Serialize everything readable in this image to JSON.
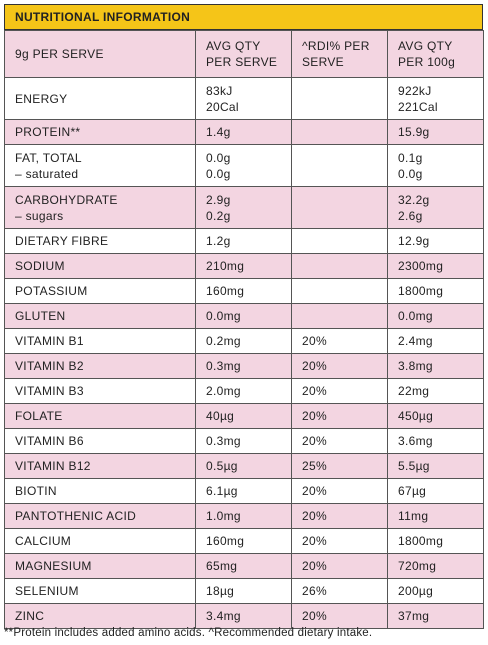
{
  "title": "NUTRITIONAL INFORMATION",
  "header": {
    "col1": "9g PER SERVE",
    "col2": [
      "AVG QTY",
      "PER SERVE"
    ],
    "col3": [
      "^RDI% PER",
      "SERVE"
    ],
    "col4": [
      "AVG QTY",
      "PER 100g"
    ]
  },
  "rows": [
    {
      "name": [
        "ENERGY"
      ],
      "serve": [
        "83kJ",
        "20Cal"
      ],
      "rdi": [
        ""
      ],
      "per100": [
        "922kJ",
        "221Cal"
      ]
    },
    {
      "name": [
        "PROTEIN**"
      ],
      "serve": [
        "1.4g"
      ],
      "rdi": [
        ""
      ],
      "per100": [
        "15.9g"
      ]
    },
    {
      "name": [
        "FAT, TOTAL",
        "– saturated"
      ],
      "serve": [
        "0.0g",
        "0.0g"
      ],
      "rdi": [
        ""
      ],
      "per100": [
        "0.1g",
        "0.0g"
      ]
    },
    {
      "name": [
        "CARBOHYDRATE",
        "– sugars"
      ],
      "serve": [
        "2.9g",
        "0.2g"
      ],
      "rdi": [
        ""
      ],
      "per100": [
        "32.2g",
        "2.6g"
      ]
    },
    {
      "name": [
        "DIETARY FIBRE"
      ],
      "serve": [
        "1.2g"
      ],
      "rdi": [
        ""
      ],
      "per100": [
        "12.9g"
      ]
    },
    {
      "name": [
        "SODIUM"
      ],
      "serve": [
        "210mg"
      ],
      "rdi": [
        ""
      ],
      "per100": [
        "2300mg"
      ]
    },
    {
      "name": [
        "POTASSIUM"
      ],
      "serve": [
        "160mg"
      ],
      "rdi": [
        ""
      ],
      "per100": [
        "1800mg"
      ]
    },
    {
      "name": [
        "GLUTEN"
      ],
      "serve": [
        "0.0mg"
      ],
      "rdi": [
        ""
      ],
      "per100": [
        "0.0mg"
      ]
    },
    {
      "name": [
        "VITAMIN B1"
      ],
      "serve": [
        "0.2mg"
      ],
      "rdi": [
        "20%"
      ],
      "per100": [
        "2.4mg"
      ]
    },
    {
      "name": [
        "VITAMIN B2"
      ],
      "serve": [
        "0.3mg"
      ],
      "rdi": [
        "20%"
      ],
      "per100": [
        "3.8mg"
      ]
    },
    {
      "name": [
        "VITAMIN B3"
      ],
      "serve": [
        "2.0mg"
      ],
      "rdi": [
        "20%"
      ],
      "per100": [
        "22mg"
      ]
    },
    {
      "name": [
        "FOLATE"
      ],
      "serve": [
        "40µg"
      ],
      "rdi": [
        "20%"
      ],
      "per100": [
        "450µg"
      ]
    },
    {
      "name": [
        "VITAMIN B6"
      ],
      "serve": [
        "0.3mg"
      ],
      "rdi": [
        "20%"
      ],
      "per100": [
        "3.6mg"
      ]
    },
    {
      "name": [
        "VITAMIN B12"
      ],
      "serve": [
        "0.5µg"
      ],
      "rdi": [
        "25%"
      ],
      "per100": [
        "5.5µg"
      ]
    },
    {
      "name": [
        "BIOTIN"
      ],
      "serve": [
        "6.1µg"
      ],
      "rdi": [
        "20%"
      ],
      "per100": [
        "67µg"
      ]
    },
    {
      "name": [
        "PANTOTHENIC ACID"
      ],
      "serve": [
        "1.0mg"
      ],
      "rdi": [
        "20%"
      ],
      "per100": [
        "11mg"
      ]
    },
    {
      "name": [
        "CALCIUM"
      ],
      "serve": [
        "160mg"
      ],
      "rdi": [
        "20%"
      ],
      "per100": [
        "1800mg"
      ]
    },
    {
      "name": [
        "MAGNESIUM"
      ],
      "serve": [
        "65mg"
      ],
      "rdi": [
        "20%"
      ],
      "per100": [
        "720mg"
      ]
    },
    {
      "name": [
        "SELENIUM"
      ],
      "serve": [
        "18µg"
      ],
      "rdi": [
        "26%"
      ],
      "per100": [
        "200µg"
      ]
    },
    {
      "name": [
        "ZINC"
      ],
      "serve": [
        "3.4mg"
      ],
      "rdi": [
        "20%"
      ],
      "per100": [
        "37mg"
      ]
    }
  ],
  "footnote": "**Protein includes added amino acids. ^Recommended dietary intake.",
  "colors": {
    "title_bg": "#f5c518",
    "pink_row": "#f3d5e1",
    "white_row": "#ffffff",
    "border": "#555555"
  }
}
